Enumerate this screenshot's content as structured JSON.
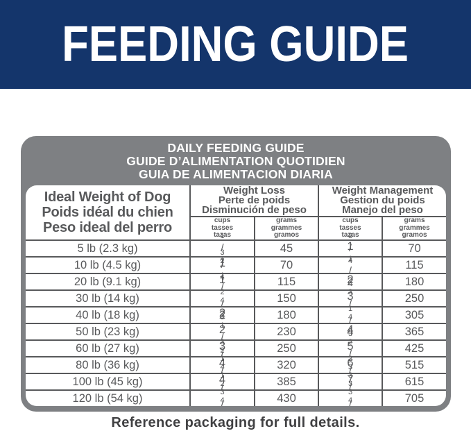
{
  "banner": {
    "title": "FEEDING GUIDE",
    "bg_color": "#14356b",
    "text_color": "#ffffff"
  },
  "table": {
    "title_lines": [
      "DAILY FEEDING GUIDE",
      "GUIDE D’ALIMENTATION QUOTIDIEN",
      "GUIA DE ALIMENTACION DIARIA"
    ],
    "row_header_lines": [
      "Ideal Weight of Dog",
      "Poids idéal du chien",
      "Peso ideal del perro"
    ],
    "groups": {
      "weight_loss": [
        "Weight Loss",
        "Perte de poids",
        "Disminución de peso"
      ],
      "weight_management": [
        "Weight Management",
        "Gestion du poids",
        "Manejo del peso"
      ]
    },
    "unit_header": {
      "cups": [
        "cups",
        "tasses",
        "tazas"
      ],
      "grams": [
        "grams",
        "grammes",
        "gramos"
      ]
    },
    "rows": [
      {
        "weight": "5 lb (2.3 kg)",
        "wl_cups": "1/2",
        "wl_grams": "45",
        "wm_cups": "3/4",
        "wm_grams": "70"
      },
      {
        "weight": "10 lb (4.5 kg)",
        "wl_cups": "3/4",
        "wl_grams": "70",
        "wm_cups": "1 1/4",
        "wm_grams": "115"
      },
      {
        "weight": "20 lb (9.1 kg)",
        "wl_cups": "1 1/4",
        "wl_grams": "115",
        "wm_cups": "2",
        "wm_grams": "180"
      },
      {
        "weight": "30 lb (14 kg)",
        "wl_cups": "1 2/3",
        "wl_grams": "150",
        "wm_cups": "2 3/4",
        "wm_grams": "250"
      },
      {
        "weight": "40 lb (18 kg)",
        "wl_cups": "2",
        "wl_grams": "180",
        "wm_cups": "3 1/3",
        "wm_grams": "305"
      },
      {
        "weight": "50 lb (23 kg)",
        "wl_cups": "2 1/2",
        "wl_grams": "230",
        "wm_cups": "4",
        "wm_grams": "365"
      },
      {
        "weight": "60 lb (27 kg)",
        "wl_cups": "2 3/4",
        "wl_grams": "250",
        "wm_cups": "4 2/3",
        "wm_grams": "425"
      },
      {
        "weight": "80 lb (36 kg)",
        "wl_cups": "3 1/2",
        "wl_grams": "320",
        "wm_cups": "5 2/3",
        "wm_grams": "515"
      },
      {
        "weight": "100 lb (45 kg)",
        "wl_cups": "4 1/4",
        "wl_grams": "385",
        "wm_cups": "6 3/4",
        "wm_grams": "615"
      },
      {
        "weight": "120 lb (54 kg)",
        "wl_cups": "4 3/4",
        "wl_grams": "430",
        "wm_cups": "7 3/4",
        "wm_grams": "705"
      }
    ]
  },
  "footer": {
    "note": "Reference packaging for full details."
  },
  "colors": {
    "banner_navy": "#14356b",
    "panel_gray": "#7e8083",
    "table_text_gray": "#58595b",
    "footer_text": "#404042"
  }
}
